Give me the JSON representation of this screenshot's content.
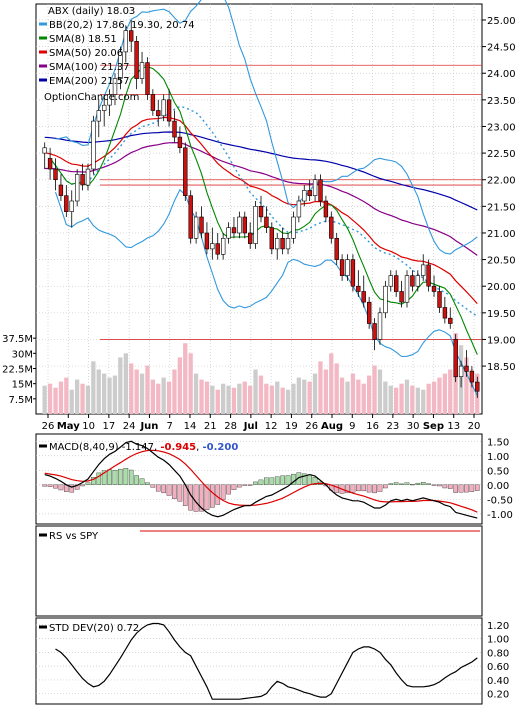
{
  "chart_data": [
    {
      "type": "candlestick",
      "title": "ABX (daily) 18.03",
      "legend": [
        {
          "label": "BB(20,2) 17.86, 19.30, 20.74",
          "color": "#3399dd"
        },
        {
          "label": "SMA(8) 18.51",
          "color": "#008800"
        },
        {
          "label": "SMA(50) 20.06",
          "color": "#dd0000"
        },
        {
          "label": "SMA(100) 21.37",
          "color": "#880088"
        },
        {
          "label": "EMA(200) 21.57",
          "color": "#0000aa"
        }
      ],
      "watermark": "OptionChance.com",
      "price_axis": {
        "ticks": [
          "25.00",
          "24.50",
          "24.00",
          "23.50",
          "23.00",
          "22.50",
          "22.00",
          "21.50",
          "21.00",
          "20.50",
          "20.00",
          "19.50",
          "19.00",
          "18.50"
        ],
        "range": [
          17.6,
          25.3
        ]
      },
      "volume_axis": {
        "ticks": [
          "37.5M",
          "30M",
          "22.5M",
          "15M",
          "7.5M"
        ],
        "max": 45
      },
      "x_labels": [
        "26",
        "May",
        "10",
        "17",
        "24",
        "Jun",
        "7",
        "14",
        "21",
        "28",
        "Jul",
        "12",
        "19",
        "26",
        "Aug",
        "9",
        "16",
        "23",
        "30",
        "Sep",
        "13",
        "20"
      ],
      "hlines": [
        24.15,
        23.6,
        22.0,
        21.9,
        19.0
      ],
      "candles": [
        {
          "o": 22.5,
          "h": 22.7,
          "l": 22.2,
          "c": 22.6
        },
        {
          "o": 22.4,
          "h": 22.6,
          "l": 22.0,
          "c": 22.2
        },
        {
          "o": 22.2,
          "h": 22.4,
          "l": 21.8,
          "c": 22.0
        },
        {
          "o": 21.9,
          "h": 22.1,
          "l": 21.6,
          "c": 21.7
        },
        {
          "o": 21.7,
          "h": 21.9,
          "l": 21.3,
          "c": 21.4
        },
        {
          "o": 21.4,
          "h": 21.8,
          "l": 21.1,
          "c": 21.6
        },
        {
          "o": 21.6,
          "h": 22.2,
          "l": 21.5,
          "c": 22.1
        },
        {
          "o": 22.1,
          "h": 22.3,
          "l": 21.8,
          "c": 21.9
        },
        {
          "o": 21.9,
          "h": 22.3,
          "l": 21.8,
          "c": 22.2
        },
        {
          "o": 22.2,
          "h": 23.2,
          "l": 22.1,
          "c": 23.1
        },
        {
          "o": 23.1,
          "h": 23.5,
          "l": 22.8,
          "c": 23.3
        },
        {
          "o": 23.3,
          "h": 23.6,
          "l": 23.0,
          "c": 23.4
        },
        {
          "o": 23.4,
          "h": 23.7,
          "l": 23.2,
          "c": 23.6
        },
        {
          "o": 23.6,
          "h": 24.0,
          "l": 23.4,
          "c": 23.9
        },
        {
          "o": 23.9,
          "h": 24.5,
          "l": 23.7,
          "c": 24.4
        },
        {
          "o": 24.4,
          "h": 24.9,
          "l": 24.2,
          "c": 24.8
        },
        {
          "o": 24.8,
          "h": 25.0,
          "l": 24.4,
          "c": 24.6
        },
        {
          "o": 24.6,
          "h": 24.7,
          "l": 23.7,
          "c": 23.9
        },
        {
          "o": 23.9,
          "h": 24.4,
          "l": 23.8,
          "c": 24.2
        },
        {
          "o": 24.2,
          "h": 24.3,
          "l": 23.5,
          "c": 23.6
        },
        {
          "o": 23.6,
          "h": 23.7,
          "l": 23.2,
          "c": 23.3
        },
        {
          "o": 23.3,
          "h": 23.5,
          "l": 23.0,
          "c": 23.2
        },
        {
          "o": 23.2,
          "h": 23.6,
          "l": 23.1,
          "c": 23.5
        },
        {
          "o": 23.5,
          "h": 23.7,
          "l": 23.0,
          "c": 23.1
        },
        {
          "o": 23.1,
          "h": 23.3,
          "l": 22.7,
          "c": 22.8
        },
        {
          "o": 22.8,
          "h": 23.0,
          "l": 22.5,
          "c": 22.6
        },
        {
          "o": 22.6,
          "h": 22.7,
          "l": 21.6,
          "c": 21.7
        },
        {
          "o": 21.7,
          "h": 21.8,
          "l": 20.8,
          "c": 20.9
        },
        {
          "o": 20.9,
          "h": 21.4,
          "l": 20.8,
          "c": 21.3
        },
        {
          "o": 21.3,
          "h": 21.5,
          "l": 20.9,
          "c": 21.0
        },
        {
          "o": 21.0,
          "h": 21.2,
          "l": 20.6,
          "c": 20.7
        },
        {
          "o": 20.7,
          "h": 21.1,
          "l": 20.5,
          "c": 20.8
        },
        {
          "o": 20.8,
          "h": 21.0,
          "l": 20.5,
          "c": 20.6
        },
        {
          "o": 20.6,
          "h": 21.0,
          "l": 20.5,
          "c": 20.9
        },
        {
          "o": 20.9,
          "h": 21.2,
          "l": 20.8,
          "c": 21.1
        },
        {
          "o": 21.1,
          "h": 21.3,
          "l": 20.9,
          "c": 21.0
        },
        {
          "o": 21.0,
          "h": 21.4,
          "l": 20.9,
          "c": 21.3
        },
        {
          "o": 21.3,
          "h": 21.4,
          "l": 20.9,
          "c": 21.0
        },
        {
          "o": 21.0,
          "h": 21.2,
          "l": 20.7,
          "c": 20.8
        },
        {
          "o": 20.8,
          "h": 21.6,
          "l": 20.7,
          "c": 21.5
        },
        {
          "o": 21.5,
          "h": 21.7,
          "l": 21.2,
          "c": 21.3
        },
        {
          "o": 21.3,
          "h": 21.5,
          "l": 21.0,
          "c": 21.1
        },
        {
          "o": 21.1,
          "h": 21.2,
          "l": 20.6,
          "c": 20.7
        },
        {
          "o": 20.7,
          "h": 21.0,
          "l": 20.5,
          "c": 20.9
        },
        {
          "o": 20.9,
          "h": 21.1,
          "l": 20.6,
          "c": 20.7
        },
        {
          "o": 20.7,
          "h": 21.0,
          "l": 20.6,
          "c": 20.9
        },
        {
          "o": 20.9,
          "h": 21.4,
          "l": 20.8,
          "c": 21.3
        },
        {
          "o": 21.3,
          "h": 21.7,
          "l": 21.2,
          "c": 21.6
        },
        {
          "o": 21.6,
          "h": 21.9,
          "l": 21.5,
          "c": 21.8
        },
        {
          "o": 21.8,
          "h": 22.0,
          "l": 21.6,
          "c": 21.7
        },
        {
          "o": 21.7,
          "h": 22.1,
          "l": 21.6,
          "c": 22.0
        },
        {
          "o": 22.0,
          "h": 22.1,
          "l": 21.5,
          "c": 21.6
        },
        {
          "o": 21.6,
          "h": 21.7,
          "l": 21.2,
          "c": 21.3
        },
        {
          "o": 21.3,
          "h": 21.4,
          "l": 20.8,
          "c": 20.9
        },
        {
          "o": 20.9,
          "h": 21.0,
          "l": 20.4,
          "c": 20.5
        },
        {
          "o": 20.5,
          "h": 20.6,
          "l": 20.1,
          "c": 20.2
        },
        {
          "o": 20.2,
          "h": 20.6,
          "l": 20.1,
          "c": 20.5
        },
        {
          "o": 20.5,
          "h": 20.6,
          "l": 19.9,
          "c": 20.0
        },
        {
          "o": 20.0,
          "h": 20.3,
          "l": 19.8,
          "c": 19.9
        },
        {
          "o": 19.9,
          "h": 20.2,
          "l": 19.6,
          "c": 19.7
        },
        {
          "o": 19.7,
          "h": 19.8,
          "l": 19.2,
          "c": 19.3
        },
        {
          "o": 19.3,
          "h": 19.4,
          "l": 18.8,
          "c": 19.0
        },
        {
          "o": 19.0,
          "h": 19.6,
          "l": 18.9,
          "c": 19.5
        },
        {
          "o": 19.5,
          "h": 20.1,
          "l": 19.4,
          "c": 20.0
        },
        {
          "o": 20.0,
          "h": 20.3,
          "l": 19.9,
          "c": 20.2
        },
        {
          "o": 20.2,
          "h": 20.3,
          "l": 19.8,
          "c": 19.9
        },
        {
          "o": 19.9,
          "h": 20.1,
          "l": 19.6,
          "c": 19.7
        },
        {
          "o": 19.7,
          "h": 20.3,
          "l": 19.6,
          "c": 20.2
        },
        {
          "o": 20.2,
          "h": 20.3,
          "l": 19.9,
          "c": 20.0
        },
        {
          "o": 20.0,
          "h": 20.3,
          "l": 19.9,
          "c": 20.2
        },
        {
          "o": 20.2,
          "h": 20.6,
          "l": 20.1,
          "c": 20.4
        },
        {
          "o": 20.4,
          "h": 20.5,
          "l": 19.9,
          "c": 20.0
        },
        {
          "o": 20.0,
          "h": 20.2,
          "l": 19.8,
          "c": 19.9
        },
        {
          "o": 19.9,
          "h": 20.0,
          "l": 19.5,
          "c": 19.6
        },
        {
          "o": 19.6,
          "h": 19.8,
          "l": 19.3,
          "c": 19.4
        },
        {
          "o": 19.4,
          "h": 19.6,
          "l": 19.2,
          "c": 19.3
        },
        {
          "o": 19.0,
          "h": 19.1,
          "l": 18.2,
          "c": 18.3
        },
        {
          "o": 18.3,
          "h": 18.6,
          "l": 18.1,
          "c": 18.5
        },
        {
          "o": 18.5,
          "h": 18.8,
          "l": 18.3,
          "c": 18.4
        },
        {
          "o": 18.4,
          "h": 18.5,
          "l": 18.1,
          "c": 18.2
        },
        {
          "o": 18.2,
          "h": 18.3,
          "l": 17.9,
          "c": 18.03
        }
      ],
      "volumes": [
        14,
        15,
        13,
        16,
        18,
        12,
        17,
        15,
        14,
        26,
        22,
        20,
        18,
        19,
        28,
        30,
        25,
        22,
        20,
        24,
        17,
        15,
        18,
        16,
        22,
        28,
        35,
        30,
        20,
        17,
        16,
        14,
        12,
        15,
        14,
        13,
        15,
        16,
        14,
        22,
        19,
        15,
        14,
        16,
        13,
        12,
        15,
        18,
        17,
        16,
        20,
        26,
        22,
        30,
        25,
        18,
        16,
        20,
        17,
        15,
        19,
        24,
        22,
        16,
        14,
        13,
        15,
        17,
        14,
        13,
        12,
        15,
        16,
        18,
        20,
        22,
        40,
        34,
        28,
        22,
        20
      ]
    },
    {
      "type": "line",
      "title": "MACD(8,40,9) -1.147, -0.945, -0.200",
      "title_parts": [
        "MACD(8,40,9) -1.147, ",
        "-0.945",
        ", ",
        "-0.200"
      ],
      "yticks": [
        "1.50",
        "1.00",
        "0.50",
        "0.00",
        "-0.50",
        "-1.00"
      ],
      "ylim": [
        -1.35,
        1.75
      ],
      "macd": [
        0.35,
        0.3,
        0.22,
        0.12,
        0.0,
        -0.08,
        -0.02,
        0.08,
        0.2,
        0.45,
        0.7,
        0.9,
        1.05,
        1.15,
        1.3,
        1.45,
        1.5,
        1.4,
        1.35,
        1.25,
        1.1,
        0.95,
        0.85,
        0.7,
        0.5,
        0.3,
        0.0,
        -0.35,
        -0.6,
        -0.8,
        -0.95,
        -1.05,
        -1.1,
        -1.05,
        -0.95,
        -0.85,
        -0.78,
        -0.72,
        -0.72,
        -0.6,
        -0.5,
        -0.4,
        -0.35,
        -0.25,
        -0.15,
        -0.05,
        0.1,
        0.25,
        0.3,
        0.35,
        0.3,
        0.15,
        0.0,
        -0.2,
        -0.35,
        -0.45,
        -0.5,
        -0.55,
        -0.55,
        -0.6,
        -0.7,
        -0.8,
        -0.8,
        -0.7,
        -0.55,
        -0.5,
        -0.55,
        -0.5,
        -0.55,
        -0.5,
        -0.45,
        -0.5,
        -0.55,
        -0.6,
        -0.7,
        -0.75,
        -0.95,
        -1.0,
        -1.05,
        -1.1,
        -1.147
      ],
      "signal": [
        0.4,
        0.37,
        0.34,
        0.3,
        0.24,
        0.18,
        0.14,
        0.12,
        0.13,
        0.19,
        0.29,
        0.41,
        0.53,
        0.65,
        0.76,
        0.88,
        0.99,
        1.08,
        1.14,
        1.18,
        1.19,
        1.17,
        1.13,
        1.07,
        0.98,
        0.87,
        0.72,
        0.53,
        0.32,
        0.11,
        -0.09,
        -0.27,
        -0.42,
        -0.54,
        -0.63,
        -0.68,
        -0.7,
        -0.71,
        -0.71,
        -0.7,
        -0.67,
        -0.64,
        -0.59,
        -0.53,
        -0.46,
        -0.37,
        -0.27,
        -0.17,
        -0.08,
        0.0,
        0.04,
        0.05,
        0.04,
        -0.01,
        -0.08,
        -0.15,
        -0.22,
        -0.29,
        -0.34,
        -0.39,
        -0.45,
        -0.52,
        -0.57,
        -0.59,
        -0.59,
        -0.58,
        -0.58,
        -0.57,
        -0.57,
        -0.56,
        -0.54,
        -0.54,
        -0.54,
        -0.56,
        -0.59,
        -0.62,
        -0.68,
        -0.74,
        -0.8,
        -0.86,
        -0.945
      ],
      "histogram": [
        -0.05,
        -0.07,
        -0.12,
        -0.18,
        -0.24,
        -0.26,
        -0.16,
        -0.04,
        0.07,
        0.26,
        0.41,
        0.49,
        0.52,
        0.5,
        0.54,
        0.57,
        0.51,
        0.32,
        0.21,
        0.07,
        -0.09,
        -0.22,
        -0.28,
        -0.37,
        -0.48,
        -0.57,
        -0.72,
        -0.88,
        -0.92,
        -0.91,
        -0.86,
        -0.78,
        -0.68,
        -0.51,
        -0.32,
        -0.17,
        -0.08,
        -0.01,
        -0.01,
        0.1,
        0.17,
        0.24,
        0.24,
        0.28,
        0.31,
        0.32,
        0.37,
        0.42,
        0.38,
        0.35,
        0.26,
        0.1,
        -0.04,
        -0.19,
        -0.27,
        -0.3,
        -0.28,
        -0.26,
        -0.21,
        -0.21,
        -0.25,
        -0.28,
        -0.23,
        -0.11,
        0.04,
        0.08,
        0.03,
        0.07,
        0.02,
        0.06,
        0.09,
        0.04,
        -0.01,
        -0.04,
        -0.11,
        -0.13,
        -0.27,
        -0.26,
        -0.25,
        -0.24,
        -0.2
      ]
    },
    {
      "type": "line",
      "title": "RS vs SPY",
      "value": 1.0
    },
    {
      "type": "line",
      "title": "STD DEV(20) 0.72",
      "yticks": [
        "1.20",
        "1.00",
        "0.80",
        "0.60",
        "0.40",
        "0.20"
      ],
      "ylim": [
        0.05,
        1.3
      ],
      "values": [
        0.85,
        0.8,
        0.72,
        0.62,
        0.52,
        0.42,
        0.35,
        0.3,
        0.32,
        0.38,
        0.48,
        0.6,
        0.72,
        0.85,
        0.98,
        1.08,
        1.15,
        1.2,
        1.22,
        1.22,
        1.2,
        1.1,
        0.98,
        0.88,
        0.8,
        0.75,
        0.6,
        0.45,
        0.3,
        0.12,
        0.12,
        0.12,
        0.12,
        0.12,
        0.12,
        0.13,
        0.14,
        0.15,
        0.16,
        0.2,
        0.3,
        0.38,
        0.35,
        0.3,
        0.28,
        0.25,
        0.22,
        0.2,
        0.17,
        0.15,
        0.15,
        0.2,
        0.35,
        0.5,
        0.65,
        0.8,
        0.85,
        0.88,
        0.88,
        0.85,
        0.8,
        0.7,
        0.62,
        0.5,
        0.4,
        0.32,
        0.3,
        0.3,
        0.3,
        0.31,
        0.33,
        0.37,
        0.43,
        0.48,
        0.52,
        0.58,
        0.62,
        0.66,
        0.72
      ]
    }
  ]
}
